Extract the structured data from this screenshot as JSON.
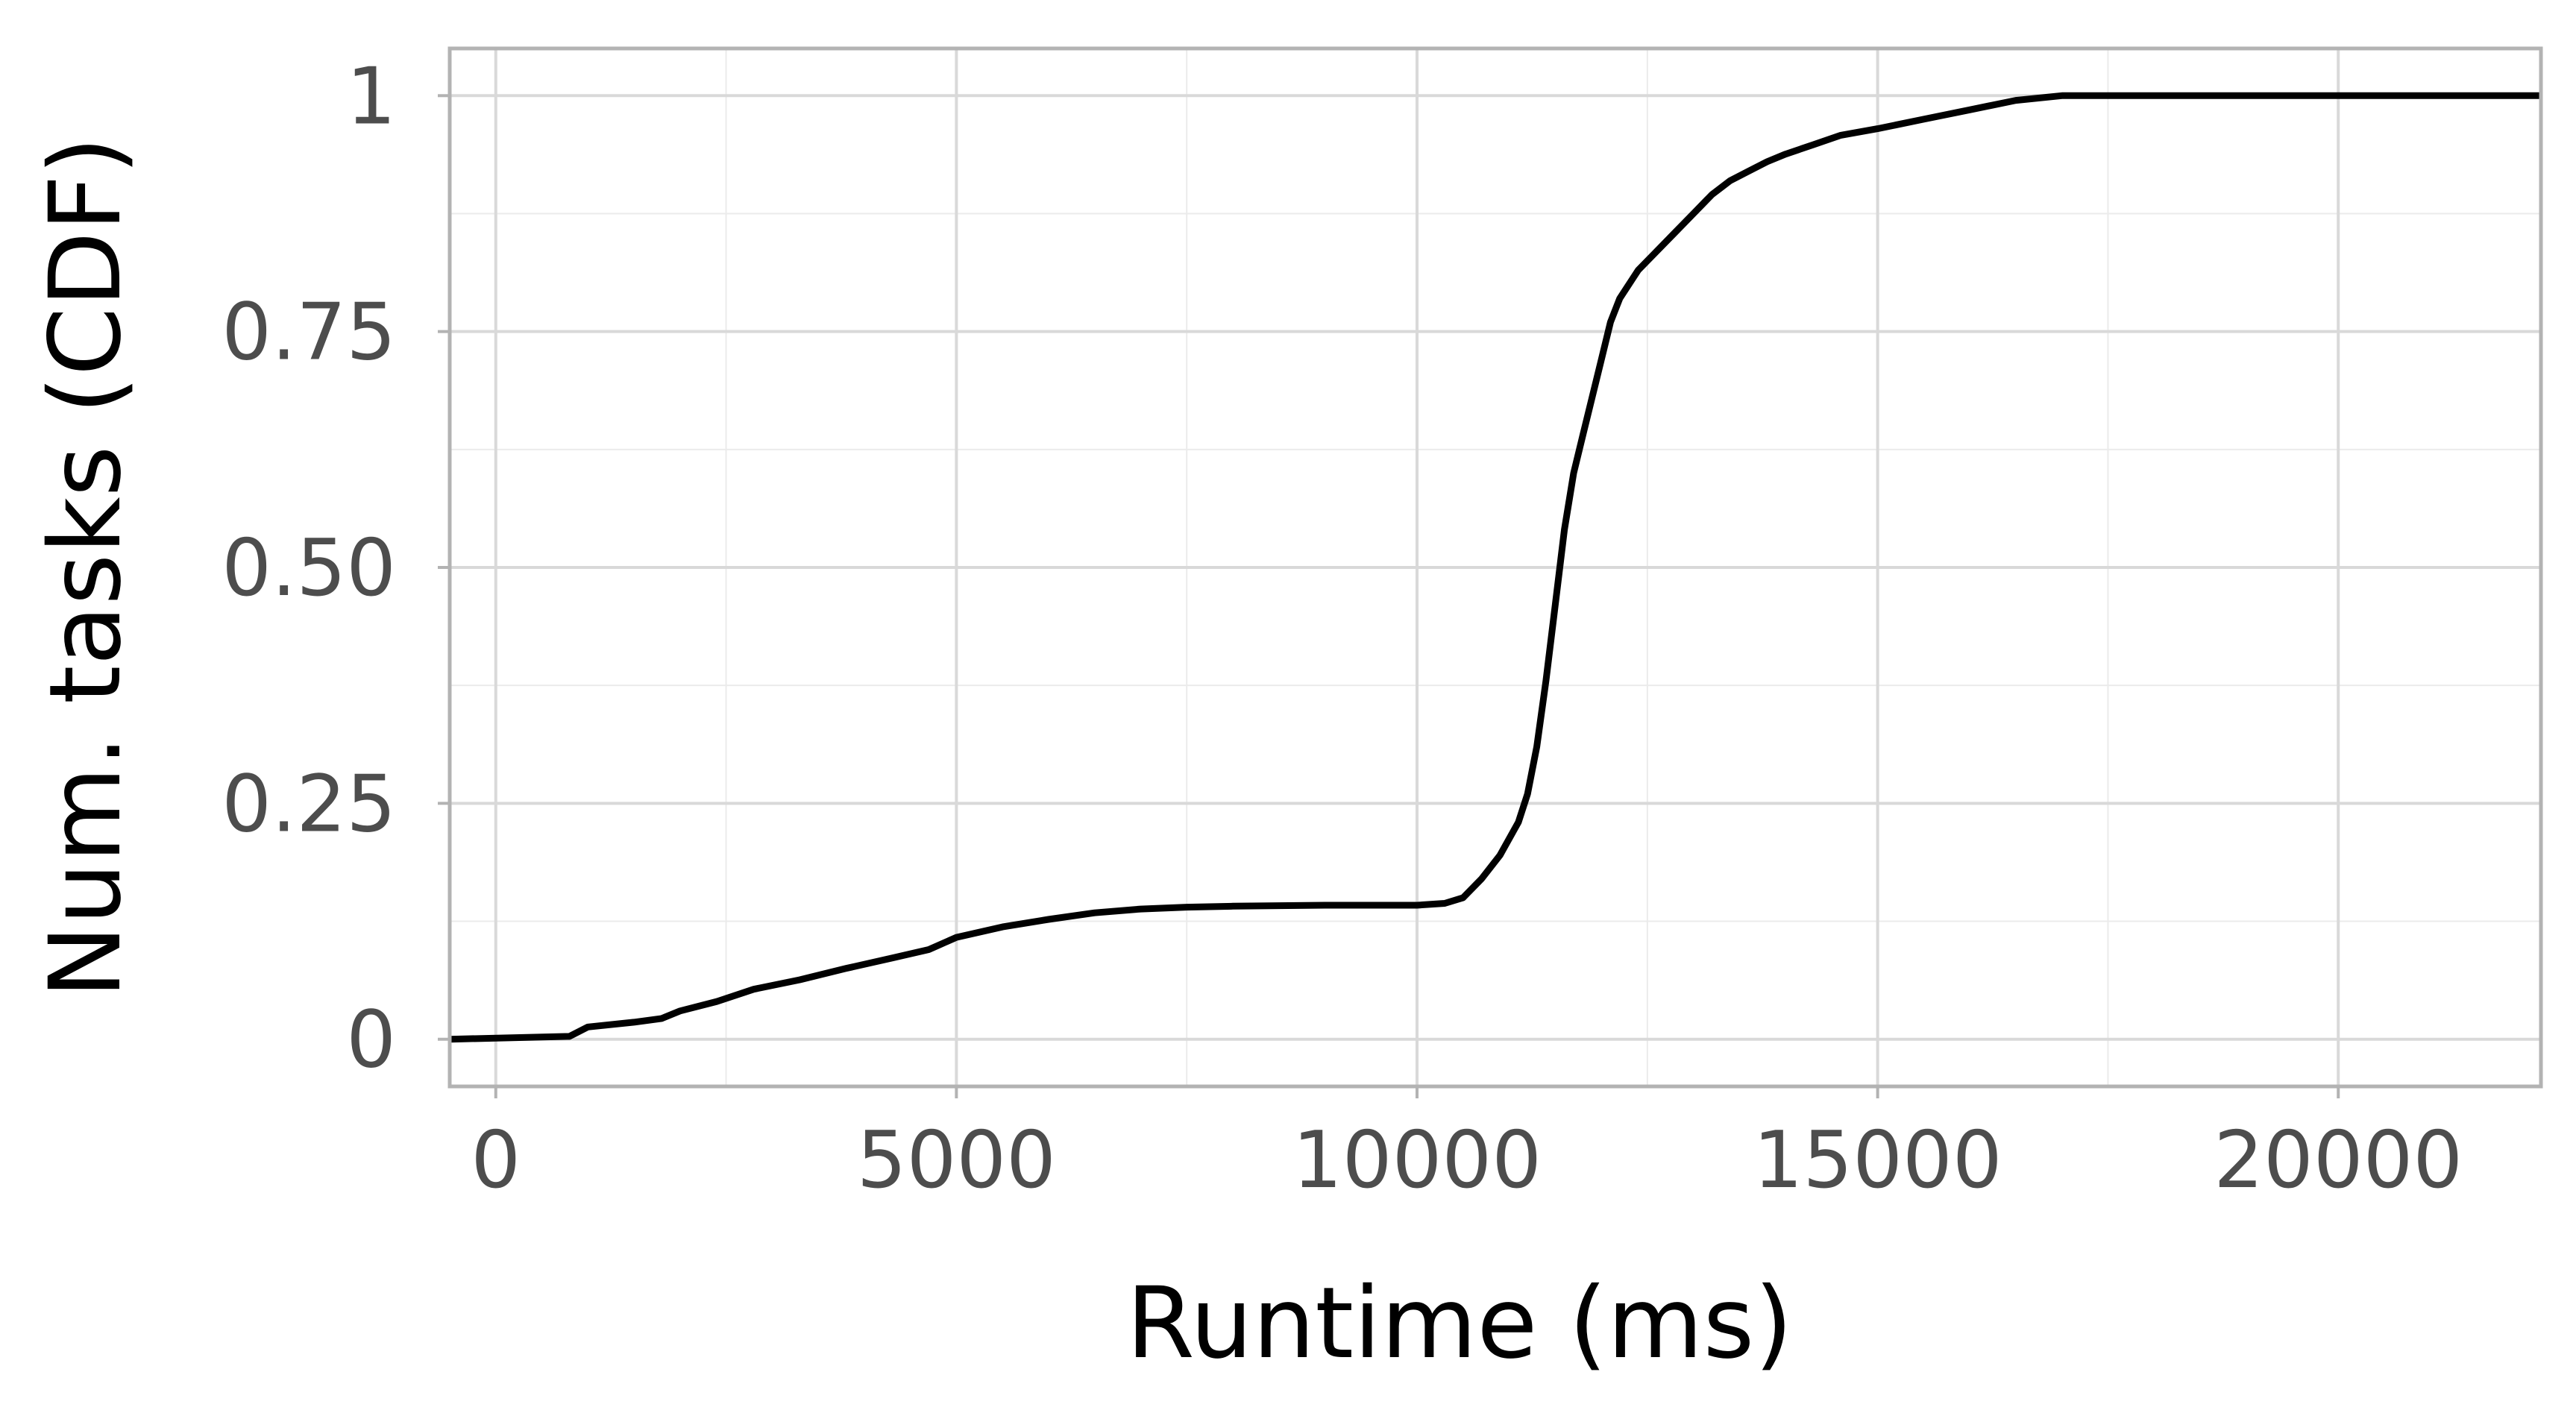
{
  "chart_data": {
    "type": "line",
    "xlabel": "Runtime (ms)",
    "ylabel": "Num. tasks (CDF)",
    "xlim": [
      -500,
      22200
    ],
    "ylim": [
      -0.05,
      1.05
    ],
    "x_ticks": [
      0,
      5000,
      10000,
      15000,
      20000
    ],
    "x_tick_labels": [
      "0",
      "5000",
      "10000",
      "15000",
      "20000"
    ],
    "y_ticks": [
      0,
      0.25,
      0.5,
      0.75,
      1
    ],
    "y_tick_labels": [
      "0",
      "0.25",
      "0.50",
      "0.75",
      "1"
    ],
    "grid": true,
    "legend": "none",
    "series": [
      {
        "color": "#000000",
        "x": [
          -500,
          800,
          1000,
          1500,
          1800,
          2000,
          2400,
          2800,
          3300,
          3800,
          4300,
          4700,
          5000,
          5500,
          6000,
          6500,
          7000,
          7500,
          8000,
          9000,
          10000,
          10300,
          10500,
          10700,
          10900,
          11100,
          11200,
          11300,
          11400,
          11500,
          11600,
          11700,
          11800,
          11900,
          12000,
          12100,
          12200,
          12300,
          12400,
          12600,
          12800,
          13000,
          13200,
          13400,
          13600,
          13800,
          14000,
          14300,
          14600,
          15000,
          15500,
          16000,
          16500,
          17000,
          17500,
          18500,
          19500,
          20500,
          21100,
          22200
        ],
        "y": [
          0,
          0.003,
          0.013,
          0.018,
          0.022,
          0.03,
          0.04,
          0.053,
          0.063,
          0.075,
          0.086,
          0.095,
          0.108,
          0.119,
          0.127,
          0.134,
          0.138,
          0.14,
          0.141,
          0.142,
          0.142,
          0.144,
          0.15,
          0.17,
          0.195,
          0.23,
          0.26,
          0.31,
          0.38,
          0.46,
          0.54,
          0.6,
          0.64,
          0.68,
          0.72,
          0.76,
          0.785,
          0.8,
          0.815,
          0.835,
          0.855,
          0.875,
          0.895,
          0.91,
          0.92,
          0.93,
          0.938,
          0.948,
          0.958,
          0.965,
          0.975,
          0.985,
          0.995,
          1.0,
          1.0,
          1.0,
          1.0,
          1.0,
          1.0,
          1.0
        ]
      }
    ]
  }
}
